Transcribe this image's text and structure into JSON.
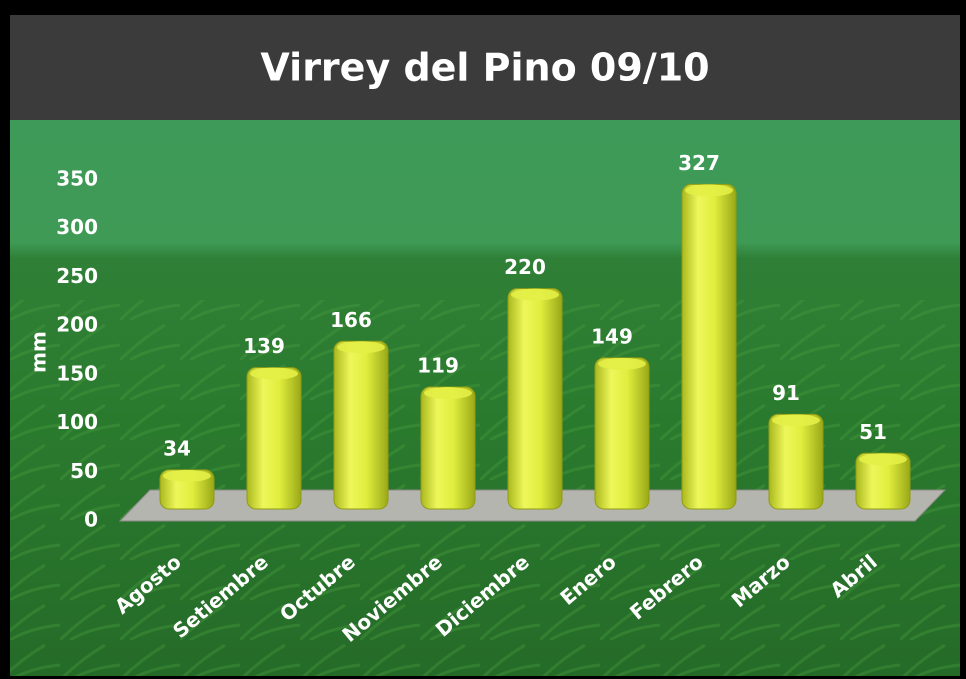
{
  "chart_data": {
    "type": "bar",
    "title": "Virrey del Pino 09/10",
    "ylabel": "mm",
    "categories": [
      "Agosto",
      "Setiembre",
      "Octubre",
      "Noviembre",
      "Diciembre",
      "Enero",
      "Febrero",
      "Marzo",
      "Abril"
    ],
    "values": [
      34,
      139,
      166,
      119,
      220,
      149,
      327,
      91,
      51
    ],
    "color": "#e3f046",
    "ylim": [
      0,
      350
    ],
    "yticks": [
      0,
      50,
      100,
      150,
      200,
      250,
      300,
      350
    ]
  }
}
